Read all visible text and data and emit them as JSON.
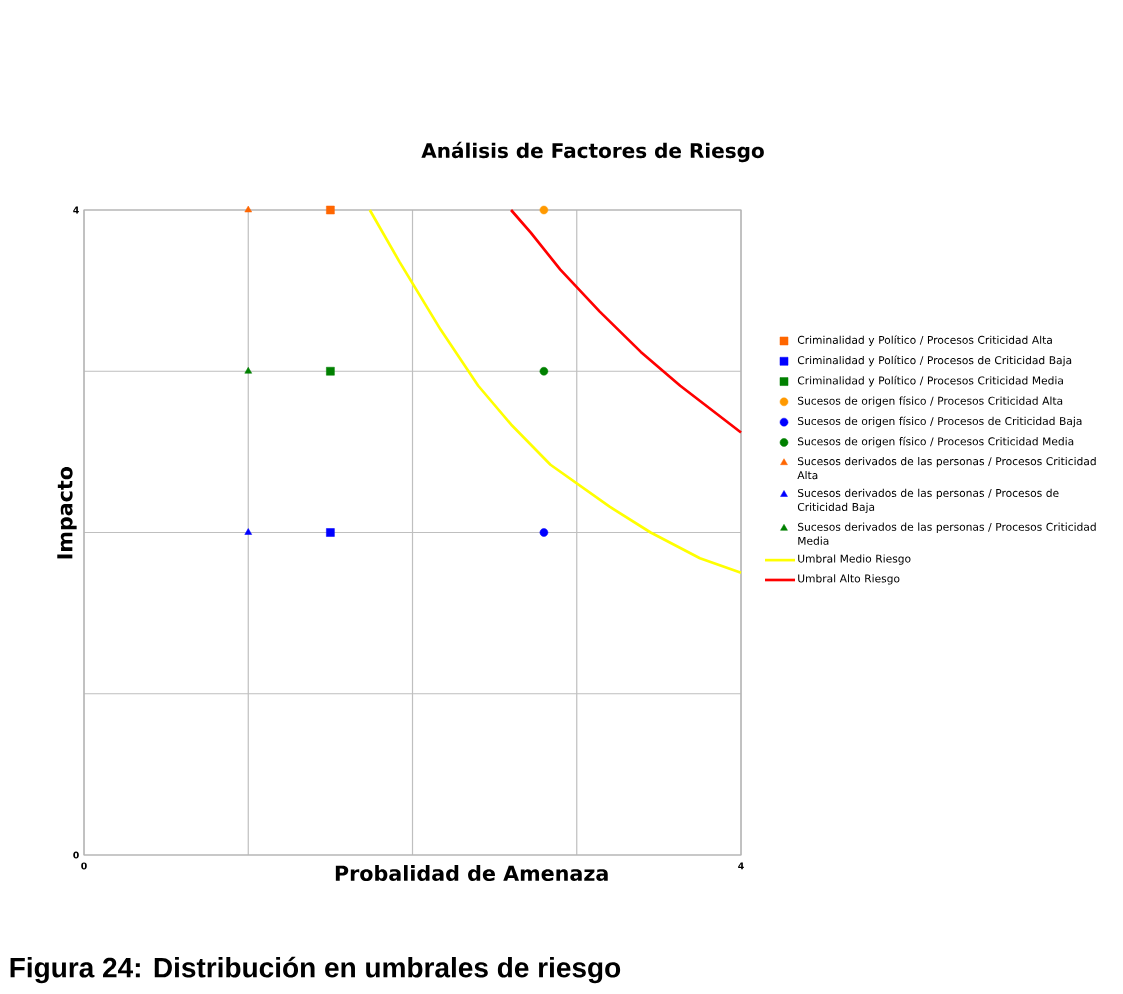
{
  "chart_data": {
    "type": "scatter",
    "title": "Análisis de Factores de Riesgo",
    "xlabel": "Probalidad de Amenaza",
    "ylabel": "Impacto",
    "xlim": [
      0,
      4
    ],
    "ylim": [
      0,
      4
    ],
    "xticks": [
      0,
      {
        "value": 1,
        "label": null
      },
      {
        "value": 2,
        "label": null
      },
      {
        "value": 3,
        "label": null
      },
      4
    ],
    "yticks": [
      0,
      {
        "value": 1,
        "label": null
      },
      {
        "value": 2,
        "label": null
      },
      {
        "value": 3,
        "label": null
      },
      4
    ],
    "grid": true,
    "legend": "right",
    "series": [
      {
        "name": "Criminalidad  y Político / Procesos Criticidad Alta",
        "color": "#ff6600",
        "marker": "square",
        "x": [
          1.5
        ],
        "values": [
          4
        ]
      },
      {
        "name": "Criminalidad  y Político / Procesos de Criticidad Baja",
        "color": "#0000ff",
        "marker": "square",
        "x": [
          1.5
        ],
        "values": [
          2
        ]
      },
      {
        "name": "Criminalidad  y Político / Procesos Criticidad Media",
        "color": "#008000",
        "marker": "square",
        "x": [
          1.5
        ],
        "values": [
          3
        ]
      },
      {
        "name": "Sucesos de origen físico / Procesos Criticidad Alta",
        "color": "#ff9900",
        "marker": "circle",
        "x": [
          2.8
        ],
        "values": [
          4
        ]
      },
      {
        "name": "Sucesos de origen físico / Procesos de Criticidad Baja",
        "color": "#0000ff",
        "marker": "circle",
        "x": [
          2.8
        ],
        "values": [
          2
        ]
      },
      {
        "name": "Sucesos de origen físico / Procesos Criticidad Media",
        "color": "#008000",
        "marker": "circle",
        "x": [
          2.8
        ],
        "values": [
          3
        ]
      },
      {
        "name": "Sucesos derivados de las personas / Procesos Criticidad Alta",
        "color": "#ff6600",
        "marker": "triangle",
        "x": [
          1
        ],
        "values": [
          4
        ]
      },
      {
        "name": "Sucesos derivados de las personas / Procesos de Criticidad Baja",
        "color": "#0000ff",
        "marker": "triangle",
        "x": [
          1
        ],
        "values": [
          2
        ]
      },
      {
        "name": "Sucesos derivados de las personas / Procesos Criticidad Media",
        "color": "#008000",
        "marker": "triangle",
        "x": [
          1
        ],
        "values": [
          3
        ]
      },
      {
        "name": "Umbral Medio  Riesgo",
        "type": "line",
        "color": "#ffff00",
        "line_style": "solid",
        "x": [
          1.74,
          1.92,
          2.17,
          2.4,
          2.6,
          2.84,
          3.2,
          3.45,
          3.75,
          4
        ],
        "values": [
          4,
          3.68,
          3.26,
          2.91,
          2.67,
          2.42,
          2.16,
          2.0,
          1.84,
          1.75
        ]
      },
      {
        "name": "Umbral Alto  Riesgo",
        "type": "line",
        "color": "#ff0000",
        "line_style": "solid",
        "x": [
          2.6,
          2.72,
          2.9,
          3.14,
          3.39,
          3.63,
          4
        ],
        "values": [
          4,
          3.86,
          3.63,
          3.37,
          3.12,
          2.91,
          2.62
        ]
      }
    ],
    "annotations": [
      "Figura 24: Distribución en umbrales de riesgo"
    ]
  }
}
